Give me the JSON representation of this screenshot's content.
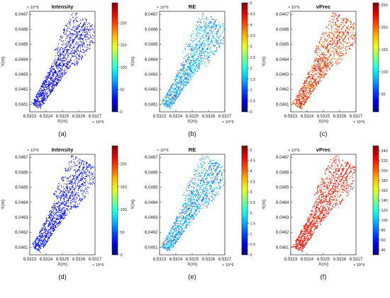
{
  "figure": {
    "panel_letters": [
      "(a)",
      "(b)",
      "(c)",
      "(d)",
      "(e)",
      "(f)"
    ]
  },
  "chart_data": [
    {
      "panel": "(a)",
      "type": "scatter",
      "title": "Intensity",
      "xlabel": "X(m)",
      "ylabel": "Y(m)",
      "xlim": [
        6.5323,
        6.5327
      ],
      "ylim": [
        6.04605,
        6.04672
      ],
      "x_exponent": "× 10^6",
      "y_exponent": "× 10^6",
      "x_ticks": [
        "6.5323",
        "6.5324",
        "6.5325",
        "6.5326",
        "6.5327"
      ],
      "y_ticks": [
        "6.0461",
        "6.0462",
        "6.0463",
        "6.0464",
        "6.0465",
        "6.0466",
        "6.0467"
      ],
      "colorbar": {
        "colormap": "jet",
        "range": [
          0,
          245
        ],
        "ticks": [
          "0",
          "50",
          "100",
          "150",
          "200"
        ]
      },
      "dominant_colors": [
        "#0a1ad0",
        "#1c3cff",
        "#3a78ff",
        "#ff3030"
      ]
    },
    {
      "panel": "(b)",
      "type": "scatter",
      "title": "RE",
      "xlabel": "X(m)",
      "ylabel": "Y(m)",
      "xlim": [
        6.5323,
        6.5327
      ],
      "ylim": [
        6.04605,
        6.04672
      ],
      "x_exponent": "× 10^6",
      "y_exponent": "× 10^6",
      "x_ticks": [
        "6.5323",
        "6.5324",
        "6.5325",
        "6.5326",
        "6.5327"
      ],
      "y_ticks": [
        "6.0461",
        "6.0462",
        "6.0463",
        "6.0464",
        "6.0465",
        "6.0466",
        "6.0467"
      ],
      "colorbar": {
        "colormap": "jet",
        "range": [
          0,
          5
        ],
        "ticks": [
          "0",
          "0.5",
          "1",
          "1.5",
          "2",
          "2.5",
          "3",
          "3.5",
          "4",
          "4.5",
          "5"
        ]
      },
      "dominant_colors": [
        "#1c3cff",
        "#2a8cff",
        "#3ec8d0",
        "#7cd060",
        "#e8d030"
      ]
    },
    {
      "panel": "(c)",
      "type": "scatter",
      "title": "vPrec",
      "xlabel": "X(m)",
      "ylabel": "Y(m)",
      "xlim": [
        6.5323,
        6.5327
      ],
      "ylim": [
        6.04605,
        6.04672
      ],
      "x_exponent": "× 10^6",
      "y_exponent": "× 10^6",
      "x_ticks": [
        "6.5323",
        "6.5324",
        "6.5325",
        "6.5326",
        "6.5327"
      ],
      "y_ticks": [
        "6.0461",
        "6.0462",
        "6.0463",
        "6.0464",
        "6.0465",
        "6.0466",
        "6.0467"
      ],
      "colorbar": {
        "colormap": "jet",
        "range": [
          10,
          255
        ],
        "ticks": [
          "50",
          "100",
          "150",
          "200",
          "250"
        ]
      },
      "dominant_colors": [
        "#b01010",
        "#e03020",
        "#e89040",
        "#9cd050",
        "#30b8c8"
      ]
    },
    {
      "panel": "(d)",
      "type": "scatter",
      "title": "Intensity",
      "xlabel": "X(m)",
      "ylabel": "Y(m)",
      "xlim": [
        6.5323,
        6.5327
      ],
      "ylim": [
        6.04605,
        6.04672
      ],
      "x_exponent": "× 10^6",
      "y_exponent": "× 10^6",
      "x_ticks": [
        "6.5323",
        "6.5324",
        "6.5325",
        "6.5326",
        "6.5327"
      ],
      "y_ticks": [
        "6.0461",
        "6.0462",
        "6.0463",
        "6.0464",
        "6.0465",
        "6.0466",
        "6.0467"
      ],
      "colorbar": {
        "colormap": "jet",
        "range": [
          0,
          240
        ],
        "ticks": [
          "0",
          "50",
          "100",
          "150",
          "200"
        ]
      },
      "dominant_colors": [
        "#0a1ad0",
        "#1c3cff",
        "#3a78ff",
        "#40d0ff"
      ]
    },
    {
      "panel": "(e)",
      "type": "scatter",
      "title": "RE",
      "xlabel": "X(m)",
      "ylabel": "Y(m)",
      "xlim": [
        6.5323,
        6.5327
      ],
      "ylim": [
        6.04605,
        6.04672
      ],
      "x_exponent": "× 10^6",
      "y_exponent": "× 10^6",
      "x_ticks": [
        "6.5323",
        "6.5324",
        "6.5325",
        "6.5326",
        "6.5327"
      ],
      "y_ticks": [
        "6.0461",
        "6.0462",
        "6.0463",
        "6.0464",
        "6.0465",
        "6.0466",
        "6.0467"
      ],
      "colorbar": {
        "colormap": "jet",
        "range": [
          0,
          5.2
        ],
        "ticks": [
          "0",
          "0.5",
          "1",
          "1.5",
          "2",
          "2.5",
          "3",
          "3.5",
          "4",
          "4.5",
          "5"
        ]
      },
      "dominant_colors": [
        "#1c3cff",
        "#2a8cff",
        "#3ec8d0",
        "#7cd060"
      ]
    },
    {
      "panel": "(f)",
      "type": "scatter",
      "title": "vPrec",
      "xlabel": "X(m)",
      "ylabel": "Y(m)",
      "xlim": [
        6.5323,
        6.5327
      ],
      "ylim": [
        6.04605,
        6.04672
      ],
      "x_exponent": "× 10^6",
      "y_exponent": "× 10^6",
      "x_ticks": [
        "6.5323",
        "6.5324",
        "6.5325",
        "6.5326",
        "6.5327"
      ],
      "y_ticks": [
        "6.0461",
        "6.0462",
        "6.0463",
        "6.0464",
        "6.0465",
        "6.0466",
        "6.0467"
      ],
      "colorbar": {
        "colormap": "jet",
        "range": [
          30,
          250
        ],
        "ticks": [
          "40",
          "60",
          "80",
          "100",
          "120",
          "140",
          "160",
          "180",
          "200",
          "220",
          "240"
        ]
      },
      "dominant_colors": [
        "#b01010",
        "#d02818",
        "#e05020",
        "#d0b040"
      ]
    }
  ]
}
